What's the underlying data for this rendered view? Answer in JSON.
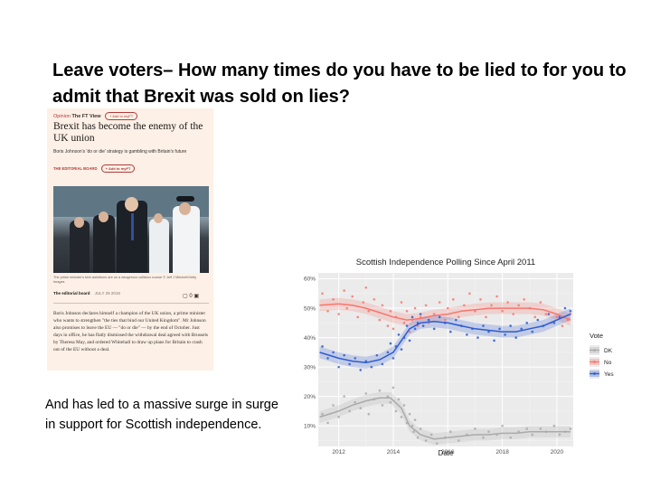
{
  "slide": {
    "title": "Leave voters– How many times do you have to be lied to for you to admit that Brexit was sold on lies?",
    "caption": "And has led to a massive surge in surge in support for Scottish independence."
  },
  "ft_article": {
    "section": "Opinion",
    "column": "The FT View",
    "add_to_myft": "+ Add to myFT",
    "headline": "Brexit has become the enemy of the UK union",
    "standfirst": "Boris Johnson's 'do or die' strategy is gambling with Britain's future",
    "board": "THE EDITORIAL BOARD",
    "photo_caption": "The prime minister's twin ambitions are on a dangerous collision course © Jeff J Mitchell/Getty Images",
    "byline": "The editorial board",
    "date": "JULY 29 2019",
    "comment_count": "0",
    "body": "Boris Johnson declares himself a champion of the UK union, a prime minister who wants to strengthen \"the ties that bind our United Kingdom\". Mr Johnson also promises to leave the EU — \"do or die\" — by the end of October. Just days in office, he has flatly dismissed the withdrawal deal agreed with Brussels by Theresa May, and ordered Whitehall to draw up plans for Britain to crash out of the EU without a deal."
  },
  "chart_data": {
    "type": "scatter",
    "title": "Scottish Independence Polling Since April 2011",
    "xlabel": "Date",
    "ylabel": "",
    "xlim": [
      2011.25,
      2020.6
    ],
    "ylim": [
      3,
      62
    ],
    "x_ticks": [
      "2012",
      "2014",
      "2016",
      "2018",
      "2020"
    ],
    "x_tick_values": [
      2012,
      2014,
      2016,
      2018,
      2020
    ],
    "y_ticks": [
      "10%",
      "20%",
      "30%",
      "40%",
      "50%",
      "60%"
    ],
    "y_tick_values": [
      10,
      20,
      30,
      40,
      50,
      60
    ],
    "legend_title": "Vote",
    "legend_position": "right",
    "grid": true,
    "series": [
      {
        "name": "DK",
        "color": "#aaaaaa",
        "trend_x": [
          2011.3,
          2012.0,
          2012.5,
          2013.0,
          2013.5,
          2013.9,
          2014.3,
          2014.6,
          2015.0,
          2015.5,
          2016.0,
          2016.5,
          2017.0,
          2017.5,
          2018.0,
          2018.5,
          2019.0,
          2019.5,
          2020.0,
          2020.5
        ],
        "trend_y": [
          13,
          15,
          17,
          18.5,
          19.5,
          19.5,
          16,
          10,
          7,
          5.5,
          6,
          6.5,
          7,
          7,
          7.5,
          7.5,
          8,
          8,
          8,
          8
        ],
        "points": [
          [
            2011.4,
            14
          ],
          [
            2011.6,
            11
          ],
          [
            2011.8,
            17
          ],
          [
            2012.0,
            13
          ],
          [
            2012.2,
            20
          ],
          [
            2012.4,
            15
          ],
          [
            2012.6,
            18
          ],
          [
            2012.8,
            16
          ],
          [
            2013.0,
            21
          ],
          [
            2013.1,
            14
          ],
          [
            2013.3,
            19
          ],
          [
            2013.5,
            22
          ],
          [
            2013.6,
            17
          ],
          [
            2013.8,
            20
          ],
          [
            2013.9,
            18
          ],
          [
            2014.0,
            23
          ],
          [
            2014.1,
            15
          ],
          [
            2014.2,
            19
          ],
          [
            2014.3,
            13
          ],
          [
            2014.4,
            17
          ],
          [
            2014.5,
            11
          ],
          [
            2014.6,
            14
          ],
          [
            2014.7,
            10
          ],
          [
            2014.75,
            8
          ],
          [
            2014.8,
            12
          ],
          [
            2014.9,
            6
          ],
          [
            2015.0,
            9
          ],
          [
            2015.2,
            5
          ],
          [
            2015.4,
            7
          ],
          [
            2015.6,
            4
          ],
          [
            2015.9,
            6
          ],
          [
            2016.1,
            8
          ],
          [
            2016.4,
            5
          ],
          [
            2016.7,
            7
          ],
          [
            2017.0,
            9
          ],
          [
            2017.3,
            6
          ],
          [
            2017.5,
            8
          ],
          [
            2017.8,
            7
          ],
          [
            2018.0,
            10
          ],
          [
            2018.3,
            6
          ],
          [
            2018.6,
            8
          ],
          [
            2018.9,
            9
          ],
          [
            2019.1,
            7
          ],
          [
            2019.4,
            9
          ],
          [
            2019.6,
            8
          ],
          [
            2019.9,
            10
          ],
          [
            2020.1,
            7
          ],
          [
            2020.3,
            8
          ],
          [
            2020.5,
            9
          ]
        ]
      },
      {
        "name": "No",
        "color": "#f8766d",
        "trend_x": [
          2011.3,
          2012.0,
          2012.5,
          2013.0,
          2013.5,
          2014.0,
          2014.5,
          2015.0,
          2015.5,
          2016.0,
          2016.5,
          2017.0,
          2017.5,
          2018.0,
          2018.5,
          2019.0,
          2019.5,
          2020.0,
          2020.5
        ],
        "trend_y": [
          51,
          51.5,
          51,
          50,
          48.5,
          47,
          46,
          46.5,
          47.5,
          48,
          49,
          49.5,
          50,
          50,
          50,
          50,
          49.5,
          48,
          46
        ],
        "points": [
          [
            2011.4,
            55
          ],
          [
            2011.6,
            49
          ],
          [
            2011.8,
            53
          ],
          [
            2012.0,
            48
          ],
          [
            2012.2,
            56
          ],
          [
            2012.3,
            50
          ],
          [
            2012.5,
            54
          ],
          [
            2012.7,
            47
          ],
          [
            2012.9,
            52
          ],
          [
            2013.0,
            57
          ],
          [
            2013.1,
            49
          ],
          [
            2013.3,
            53
          ],
          [
            2013.5,
            46
          ],
          [
            2013.6,
            51
          ],
          [
            2013.8,
            44
          ],
          [
            2013.9,
            49
          ],
          [
            2014.0,
            43
          ],
          [
            2014.1,
            47
          ],
          [
            2014.3,
            52
          ],
          [
            2014.4,
            45
          ],
          [
            2014.5,
            49
          ],
          [
            2014.6,
            42
          ],
          [
            2014.7,
            46
          ],
          [
            2014.8,
            50
          ],
          [
            2014.9,
            44
          ],
          [
            2015.0,
            47
          ],
          [
            2015.2,
            51
          ],
          [
            2015.3,
            45
          ],
          [
            2015.5,
            48
          ],
          [
            2015.7,
            52
          ],
          [
            2015.9,
            46
          ],
          [
            2016.0,
            50
          ],
          [
            2016.2,
            53
          ],
          [
            2016.4,
            47
          ],
          [
            2016.6,
            51
          ],
          [
            2016.8,
            55
          ],
          [
            2017.0,
            49
          ],
          [
            2017.2,
            53
          ],
          [
            2017.4,
            47
          ],
          [
            2017.6,
            51
          ],
          [
            2017.8,
            54
          ],
          [
            2018.0,
            49
          ],
          [
            2018.2,
            52
          ],
          [
            2018.4,
            48
          ],
          [
            2018.6,
            51
          ],
          [
            2018.8,
            53
          ],
          [
            2019.0,
            50
          ],
          [
            2019.2,
            47
          ],
          [
            2019.4,
            52
          ],
          [
            2019.6,
            48
          ],
          [
            2019.8,
            45
          ],
          [
            2020.0,
            47
          ],
          [
            2020.2,
            44
          ],
          [
            2020.4,
            46
          ],
          [
            2020.5,
            48
          ]
        ]
      },
      {
        "name": "Yes",
        "color": "#2d5bd2",
        "trend_x": [
          2011.3,
          2012.0,
          2012.5,
          2013.0,
          2013.5,
          2014.0,
          2014.3,
          2014.6,
          2015.0,
          2015.5,
          2016.0,
          2016.5,
          2017.0,
          2017.5,
          2018.0,
          2018.5,
          2019.0,
          2019.5,
          2020.0,
          2020.5
        ],
        "trend_y": [
          35,
          33,
          32,
          31.5,
          32.5,
          35,
          39,
          43,
          45,
          45.5,
          45,
          44,
          43,
          42.5,
          42,
          42,
          43,
          44,
          46,
          48
        ],
        "points": [
          [
            2011.4,
            37
          ],
          [
            2011.6,
            33
          ],
          [
            2011.8,
            35
          ],
          [
            2012.0,
            30
          ],
          [
            2012.2,
            34
          ],
          [
            2012.4,
            31
          ],
          [
            2012.6,
            33
          ],
          [
            2012.8,
            29
          ],
          [
            2013.0,
            32
          ],
          [
            2013.2,
            30
          ],
          [
            2013.4,
            34
          ],
          [
            2013.6,
            31
          ],
          [
            2013.8,
            35
          ],
          [
            2013.9,
            38
          ],
          [
            2014.0,
            33
          ],
          [
            2014.1,
            37
          ],
          [
            2014.2,
            41
          ],
          [
            2014.3,
            36
          ],
          [
            2014.4,
            40
          ],
          [
            2014.5,
            44
          ],
          [
            2014.6,
            39
          ],
          [
            2014.7,
            47
          ],
          [
            2014.8,
            43
          ],
          [
            2014.9,
            45
          ],
          [
            2015.0,
            48
          ],
          [
            2015.1,
            44
          ],
          [
            2015.3,
            46
          ],
          [
            2015.5,
            43
          ],
          [
            2015.7,
            47
          ],
          [
            2015.9,
            45
          ],
          [
            2016.1,
            42
          ],
          [
            2016.3,
            46
          ],
          [
            2016.5,
            44
          ],
          [
            2016.7,
            41
          ],
          [
            2016.9,
            43
          ],
          [
            2017.1,
            40
          ],
          [
            2017.3,
            44
          ],
          [
            2017.5,
            42
          ],
          [
            2017.7,
            39
          ],
          [
            2017.9,
            43
          ],
          [
            2018.1,
            41
          ],
          [
            2018.3,
            44
          ],
          [
            2018.5,
            40
          ],
          [
            2018.7,
            43
          ],
          [
            2018.9,
            45
          ],
          [
            2019.1,
            42
          ],
          [
            2019.3,
            46
          ],
          [
            2019.5,
            44
          ],
          [
            2019.7,
            48
          ],
          [
            2019.9,
            45
          ],
          [
            2020.1,
            47
          ],
          [
            2020.3,
            50
          ],
          [
            2020.5,
            49
          ]
        ]
      }
    ]
  }
}
